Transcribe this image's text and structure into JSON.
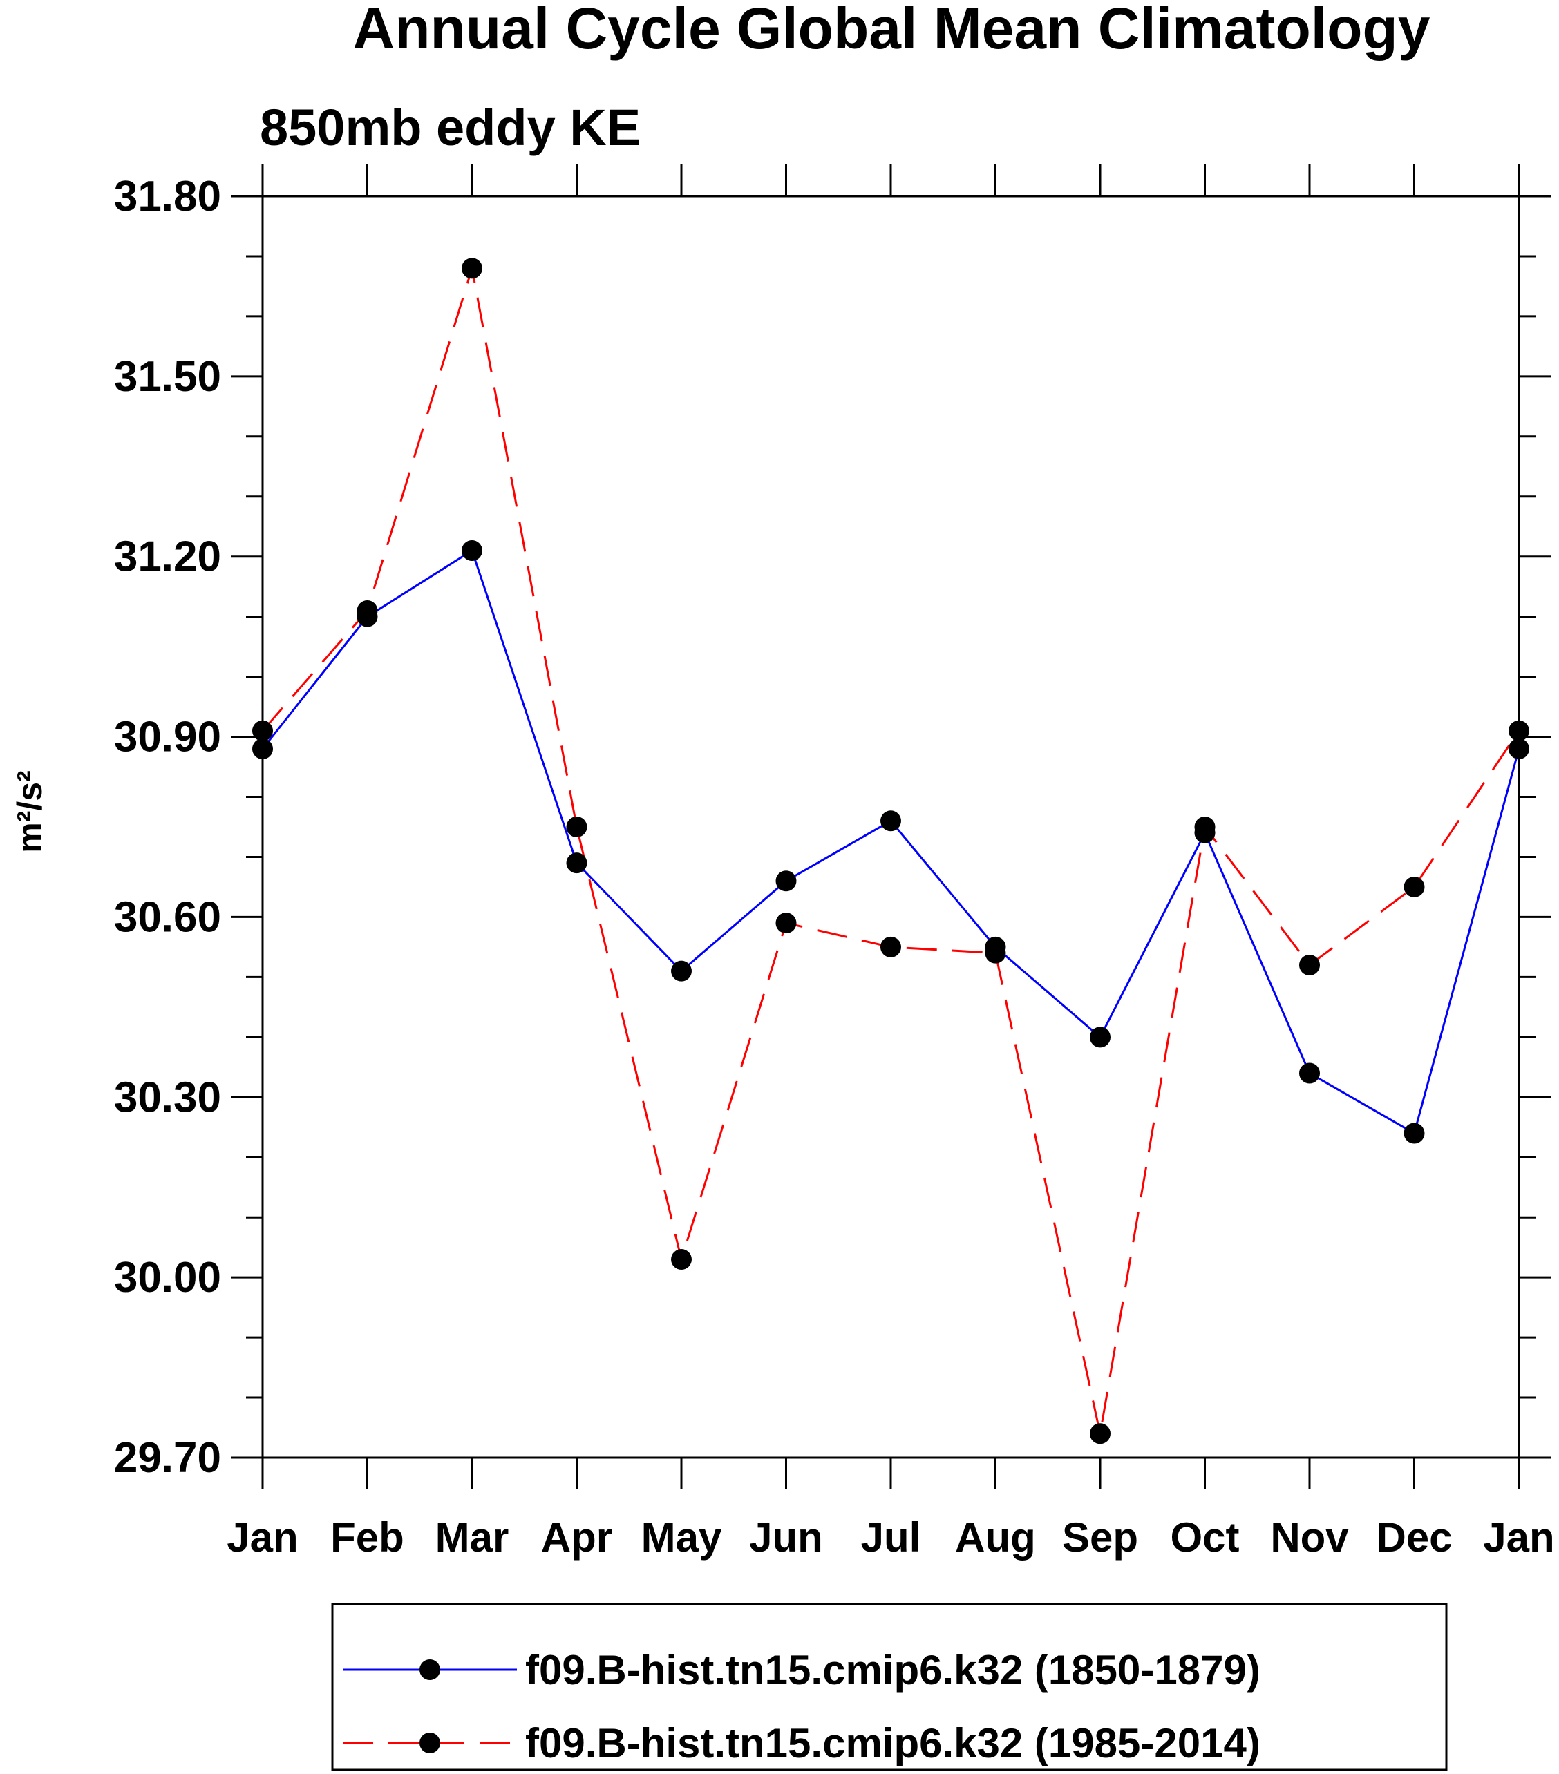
{
  "chart_data": {
    "type": "line",
    "title": "Annual Cycle Global Mean Climatology",
    "subtitle": "850mb eddy KE",
    "ylabel": "m²/s²",
    "xlabel": "",
    "categories": [
      "Jan",
      "Feb",
      "Mar",
      "Apr",
      "May",
      "Jun",
      "Jul",
      "Aug",
      "Sep",
      "Oct",
      "Nov",
      "Dec",
      "Jan"
    ],
    "ylim": [
      29.7,
      31.8
    ],
    "yticks": [
      "31.80",
      "31.50",
      "31.20",
      "30.90",
      "30.60",
      "30.30",
      "30.00",
      "29.70"
    ],
    "series": [
      {
        "name": "f09.B-hist.tn15.cmip6.k32 (1850-1879)",
        "color": "#0000ff",
        "style": "solid",
        "values": [
          30.88,
          31.1,
          31.21,
          30.69,
          30.51,
          30.66,
          30.76,
          30.55,
          30.4,
          30.74,
          30.34,
          30.24,
          30.88
        ]
      },
      {
        "name": "f09.B-hist.tn15.cmip6.k32 (1985-2014)",
        "color": "#ff0000",
        "style": "dashed",
        "values": [
          30.91,
          31.11,
          31.68,
          30.75,
          30.03,
          30.59,
          30.55,
          30.54,
          29.74,
          30.75,
          30.52,
          30.65,
          30.91
        ]
      }
    ],
    "legend_position": "bottom"
  }
}
